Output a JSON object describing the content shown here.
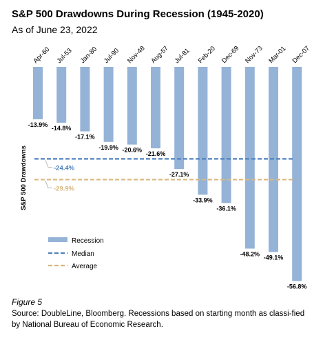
{
  "title": "S&P 500 Drawdowns During Recession (1945-2020)",
  "subtitle": "As of June 23, 2022",
  "figure_label": "Figure 5",
  "source": "Source: DoubleLine, Bloomberg. Recessions based on starting month as classi-fied by National Bureau of Economic Research.",
  "colors": {
    "bar": "#95B3D7",
    "median": "#4F81BD",
    "average": "#D9B77E"
  },
  "chart_data": {
    "type": "bar",
    "title": "S&P 500 Drawdowns During Recession (1945-2020)",
    "subtitle": "As of June 23, 2022",
    "ylabel": "S&P 500 Drawdowns",
    "xlabel": "",
    "categories": [
      "Apr-60",
      "Jul-53",
      "Jan-80",
      "Jul-90",
      "Nov-48",
      "Aug-57",
      "Jul-81",
      "Feb-20",
      "Dec-69",
      "Nov-73",
      "Mar-01",
      "Dec-07"
    ],
    "series": [
      {
        "name": "Recession",
        "values": [
          -13.9,
          -14.8,
          -17.1,
          -19.9,
          -20.6,
          -21.6,
          -27.1,
          -33.9,
          -36.1,
          -48.2,
          -49.1,
          -56.8
        ]
      }
    ],
    "data_labels": [
      "-13.9%",
      "-14.8%",
      "-17.1%",
      "-19.9%",
      "-20.6%",
      "-21.6%",
      "-27.1%",
      "-33.9%",
      "-36.1%",
      "-48.2%",
      "-49.1%",
      "-56.8%"
    ],
    "reference_lines": [
      {
        "name": "Median",
        "value": -24.4,
        "label": "-24.4%"
      },
      {
        "name": "Average",
        "value": -29.9,
        "label": "-29.9%"
      }
    ],
    "ylim": [
      -60,
      0
    ],
    "grid": false,
    "legend_position": "bottom-left"
  }
}
